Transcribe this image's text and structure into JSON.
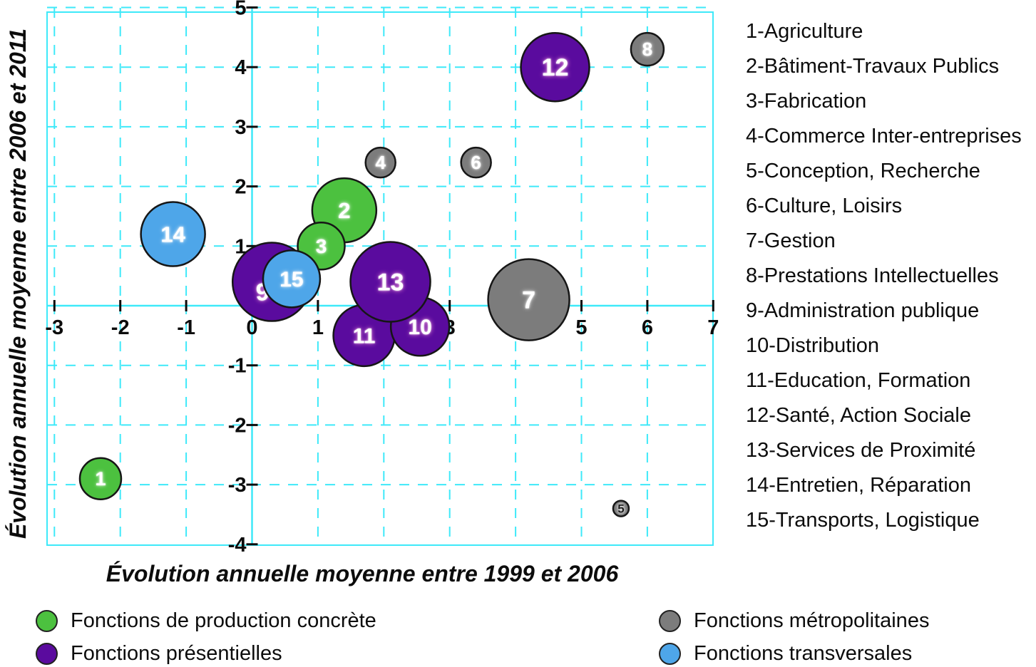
{
  "chart_data": {
    "type": "scatter",
    "subtype": "bubble",
    "title": "",
    "xlabel": "Évolution annuelle moyenne entre 1999 et 2006",
    "ylabel": "Évolution annuelle moyenne entre 2006 et 2011",
    "xlim": [
      -3.1,
      7
    ],
    "ylim": [
      -4,
      5
    ],
    "x_ticks": [
      -3,
      -2,
      -1,
      0,
      1,
      2,
      3,
      4,
      5,
      6,
      7
    ],
    "y_ticks": [
      -4,
      -3,
      -2,
      -1,
      0,
      1,
      2,
      3,
      4,
      5
    ],
    "grid": "dashed-cyan",
    "grid_color": "#3ee9f9",
    "groups": {
      "production": {
        "label": "Fonctions de production concrète",
        "color": "#4cc13f"
      },
      "presentielles": {
        "label": "Fonctions présentielles",
        "color": "#5a0b9e"
      },
      "metropolitaines": {
        "label": "Fonctions métropolitaines",
        "color": "#7c7c7c"
      },
      "transversales": {
        "label": "Fonctions transversales",
        "color": "#4ea6e9"
      }
    },
    "points": [
      {
        "n": 1,
        "label": "1",
        "x": -2.3,
        "y": -2.9,
        "r": 29,
        "group": "production"
      },
      {
        "n": 2,
        "label": "2",
        "x": 1.4,
        "y": 1.6,
        "r": 45,
        "group": "production"
      },
      {
        "n": 3,
        "label": "3",
        "x": 1.05,
        "y": 1.0,
        "r": 33,
        "group": "production"
      },
      {
        "n": 4,
        "label": "4",
        "x": 1.95,
        "y": 2.4,
        "r": 21,
        "group": "metropolitaines"
      },
      {
        "n": 5,
        "label": "5",
        "x": 5.6,
        "y": -3.4,
        "r": 11,
        "group": "metropolitaines",
        "dark_label": true
      },
      {
        "n": 6,
        "label": "6",
        "x": 3.4,
        "y": 2.4,
        "r": 21,
        "group": "metropolitaines"
      },
      {
        "n": 7,
        "label": "7",
        "x": 4.2,
        "y": 0.1,
        "r": 57,
        "group": "metropolitaines"
      },
      {
        "n": 8,
        "label": "8",
        "x": 6.0,
        "y": 4.3,
        "r": 23,
        "group": "metropolitaines"
      },
      {
        "n": 9,
        "label": "9",
        "x": 0.3,
        "y": 0.4,
        "r": 55,
        "group": "presentielles",
        "label_dx": -13,
        "label_dy": 14
      },
      {
        "n": 10,
        "label": "10",
        "x": 2.55,
        "y": -0.35,
        "r": 41,
        "group": "presentielles"
      },
      {
        "n": 11,
        "label": "11",
        "x": 1.7,
        "y": -0.5,
        "r": 43,
        "group": "presentielles"
      },
      {
        "n": 12,
        "label": "12",
        "x": 4.6,
        "y": 4.0,
        "r": 48,
        "group": "presentielles"
      },
      {
        "n": 13,
        "label": "13",
        "x": 2.1,
        "y": 0.4,
        "r": 56,
        "group": "presentielles"
      },
      {
        "n": 14,
        "label": "14",
        "x": -1.2,
        "y": 1.2,
        "r": 45,
        "group": "transversales"
      },
      {
        "n": 15,
        "label": "15",
        "x": 0.6,
        "y": 0.45,
        "r": 40,
        "group": "transversales"
      }
    ],
    "draw_order": [
      1,
      14,
      2,
      3,
      9,
      15,
      11,
      10,
      13,
      4,
      6,
      12,
      8,
      7,
      5
    ],
    "legend_position": "right-and-bottom"
  },
  "category_legend": {
    "items": [
      "1-Agriculture",
      "2-Bâtiment-Travaux Publics",
      "3-Fabrication",
      "4-Commerce Inter-entreprises",
      "5-Conception, Recherche",
      "6-Culture, Loisirs",
      "7-Gestion",
      "8-Prestations Intellectuelles",
      "9-Administration publique",
      "10-Distribution",
      "11-Education, Formation",
      "12-Santé, Action Sociale",
      "13-Services de Proximité",
      "14-Entretien, Réparation",
      "15-Transports, Logistique"
    ]
  },
  "color_legend": {
    "items": [
      {
        "label": "Fonctions de production concrète",
        "group": "production",
        "col": 0,
        "row": 0
      },
      {
        "label": "Fonctions présentielles",
        "group": "presentielles",
        "col": 0,
        "row": 1
      },
      {
        "label": "Fonctions métropolitaines",
        "group": "metropolitaines",
        "col": 1,
        "row": 0
      },
      {
        "label": "Fonctions transversales",
        "group": "transversales",
        "col": 1,
        "row": 1
      }
    ]
  }
}
